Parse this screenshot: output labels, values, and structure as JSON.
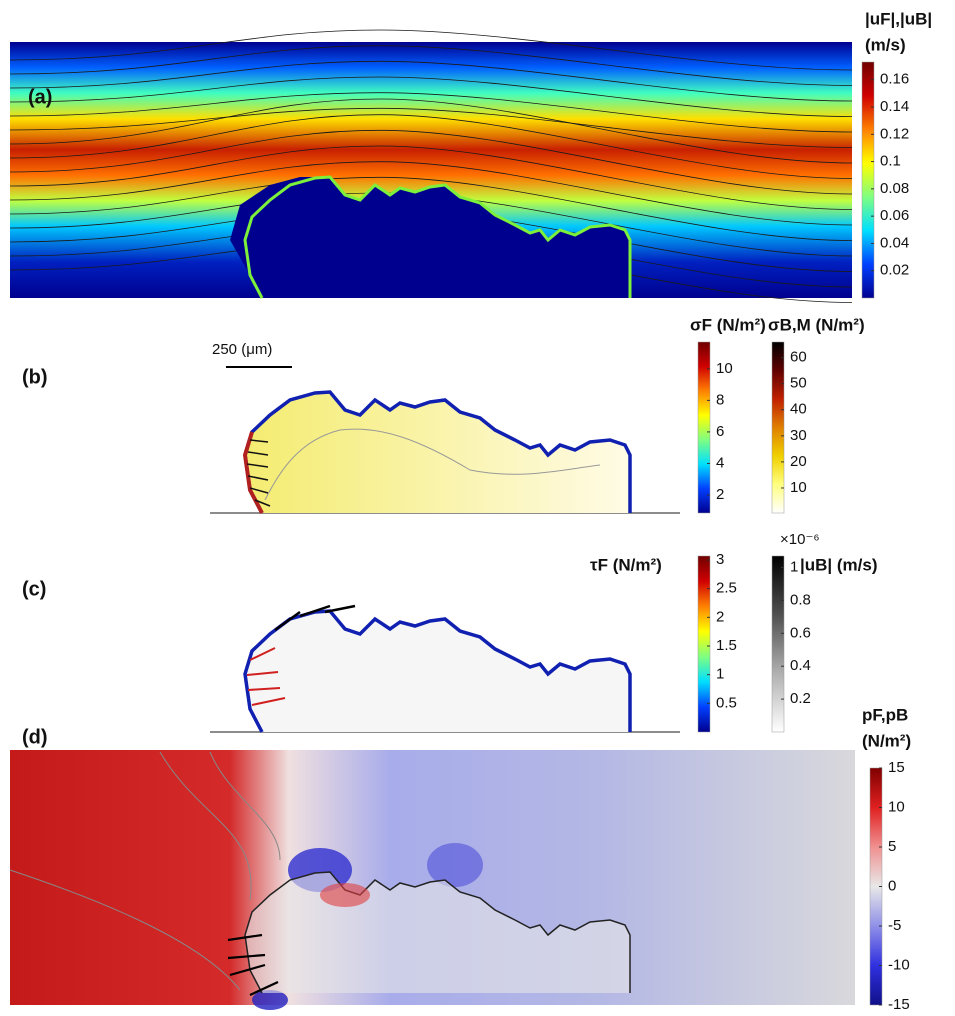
{
  "panels": [
    {
      "label": "(a)",
      "colorbars": [
        {
          "title": [
            "|uF|,|uB|",
            "(m/s)"
          ],
          "lim": [
            0,
            0.173
          ],
          "ticks": [
            0.02,
            0.04,
            0.06,
            0.08,
            0.1,
            0.12,
            0.14,
            0.16
          ],
          "colors": [
            "#00008f",
            "#0040ff",
            "#00e0ff",
            "#80ff80",
            "#ffff00",
            "#ff8000",
            "#d00000",
            "#700000"
          ]
        }
      ]
    },
    {
      "label": "(b)",
      "scale_bar": "250 (μm)",
      "colorbars": [
        {
          "title": [
            "σF (N/m²)"
          ],
          "lim": [
            0.86,
            11.7
          ],
          "ticks": [
            2,
            4,
            6,
            8,
            10
          ],
          "colors": [
            "#00008f",
            "#0040ff",
            "#00e0ff",
            "#80ff80",
            "#ffff00",
            "#ff8000",
            "#d00000",
            "#700000"
          ]
        },
        {
          "title": [
            "σB,M (N/m²)"
          ],
          "lim": [
            0.4,
            66
          ],
          "ticks": [
            10,
            20,
            30,
            40,
            50,
            60
          ],
          "colors": [
            "#ffffff",
            "#ffff80",
            "#f0d000",
            "#e08000",
            "#c02000",
            "#600000",
            "#000000"
          ]
        }
      ]
    },
    {
      "label": "(c)",
      "colorbars": [
        {
          "title": [
            "τF (N/m²)"
          ],
          "lim": [
            0,
            3.07
          ],
          "ticks": [
            0.5,
            1,
            1.5,
            2,
            2.5,
            3
          ],
          "colors": [
            "#00008f",
            "#0040ff",
            "#00e0ff",
            "#80ff80",
            "#ffff00",
            "#ff8000",
            "#d00000",
            "#700000"
          ]
        },
        {
          "title": [
            "|uB| (m/s)"
          ],
          "multiplier": "×10⁻⁶",
          "lim": [
            0,
            1.07
          ],
          "ticks": [
            0.2,
            0.4,
            0.6,
            0.8,
            1
          ],
          "colors": [
            "#ffffff",
            "#b0b0b0",
            "#505050",
            "#000000"
          ]
        }
      ]
    },
    {
      "label": "(d)",
      "colorbars": [
        {
          "title": [
            "pF,pB",
            "(N/m²)"
          ],
          "lim": [
            -15,
            15
          ],
          "ticks": [
            -15,
            -10,
            -5,
            0,
            5,
            10,
            15
          ],
          "colors": [
            "#10108a",
            "#3030e0",
            "#9090e8",
            "#e8e8e8",
            "#f09090",
            "#e02020",
            "#800000"
          ]
        }
      ]
    }
  ]
}
